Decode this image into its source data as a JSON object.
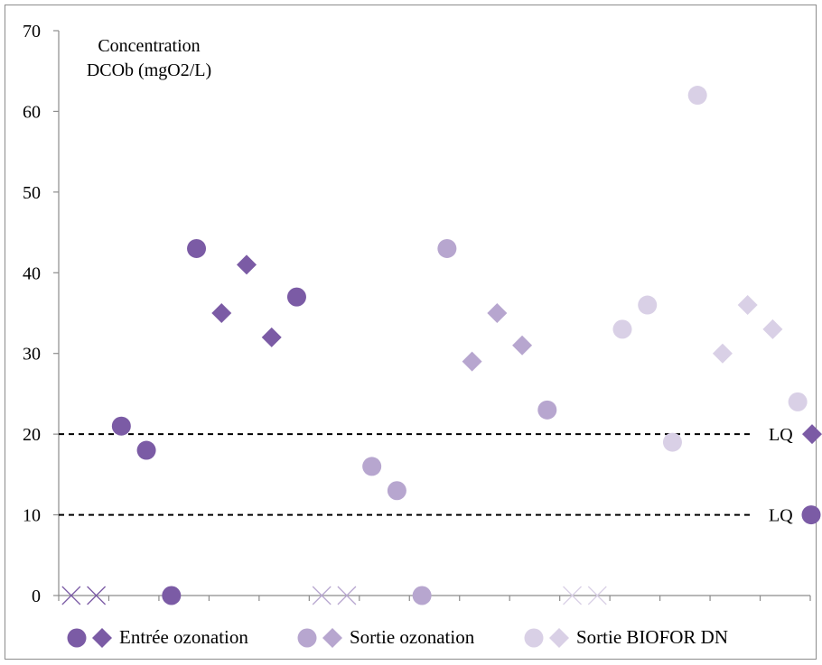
{
  "chart_data": {
    "type": "scatter",
    "ylabel_lines": [
      "Concentration",
      "DCOb (mgO2/L)"
    ],
    "ylim": [
      0,
      70
    ],
    "yticks": [
      0,
      10,
      20,
      30,
      40,
      50,
      60,
      70
    ],
    "x_slots": 30,
    "grid": false,
    "legend_position": "bottom",
    "series": [
      {
        "name": "Entrée ozonation",
        "color": "#7b5ba5",
        "circles": [
          [
            3,
            21
          ],
          [
            4,
            18
          ],
          [
            5,
            0
          ],
          [
            6,
            43
          ],
          [
            10,
            37
          ]
        ],
        "diamonds": [
          [
            7,
            35
          ],
          [
            8,
            41
          ],
          [
            9,
            32
          ]
        ],
        "crosses": [
          [
            1,
            0
          ],
          [
            2,
            0
          ]
        ]
      },
      {
        "name": "Sortie ozonation",
        "color": "#b7a6cf",
        "circles": [
          [
            13,
            16
          ],
          [
            14,
            13
          ],
          [
            15,
            0
          ],
          [
            16,
            43
          ],
          [
            20,
            23
          ]
        ],
        "diamonds": [
          [
            17,
            29
          ],
          [
            18,
            35
          ],
          [
            19,
            31
          ]
        ],
        "crosses": [
          [
            11,
            0
          ],
          [
            12,
            0
          ]
        ]
      },
      {
        "name": "Sortie BIOFOR DN",
        "color": "#d9d0e6",
        "circles": [
          [
            23,
            33
          ],
          [
            24,
            36
          ],
          [
            25,
            19
          ],
          [
            26,
            62
          ],
          [
            30,
            24
          ]
        ],
        "diamonds": [
          [
            27,
            30
          ],
          [
            28,
            36
          ],
          [
            29,
            33
          ]
        ],
        "crosses": [
          [
            21,
            0
          ],
          [
            22,
            0
          ]
        ]
      }
    ],
    "reference_lines": [
      {
        "value": 20,
        "label": "LQ",
        "marker": "diamond"
      },
      {
        "value": 10,
        "label": "LQ",
        "marker": "circle"
      }
    ]
  }
}
